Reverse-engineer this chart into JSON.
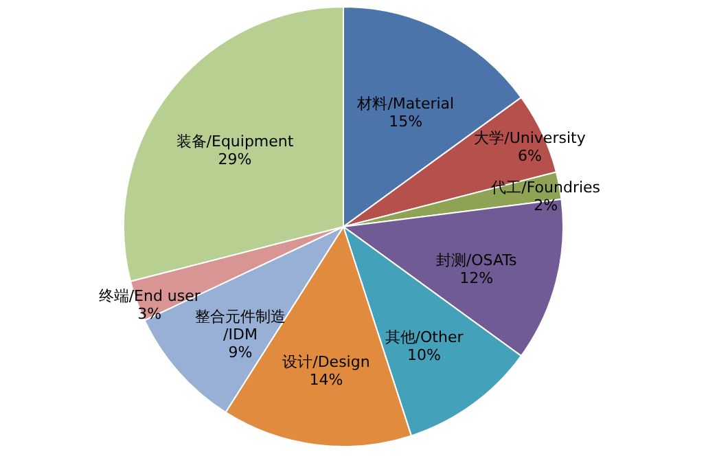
{
  "chart_data": {
    "type": "pie",
    "categories": [
      "材料/Material",
      "大学/University",
      "代工/Foundries",
      "封测/OSATs",
      "其他/Other",
      "设计/Design",
      "整合元件制造/IDM",
      "终端/End user",
      "装备/Equipment"
    ],
    "values": [
      15,
      6,
      2,
      12,
      10,
      14,
      9,
      3,
      29
    ],
    "value_labels": [
      "15%",
      "6%",
      "2%",
      "12%",
      "10%",
      "14%",
      "9%",
      "3%",
      "29%"
    ],
    "colors": [
      "#4a74aa",
      "#b5504c",
      "#8ea454",
      "#715b94",
      "#44a1ba",
      "#e08b3e",
      "#98afd6",
      "#d89593",
      "#b8cf92"
    ],
    "legend": false
  }
}
